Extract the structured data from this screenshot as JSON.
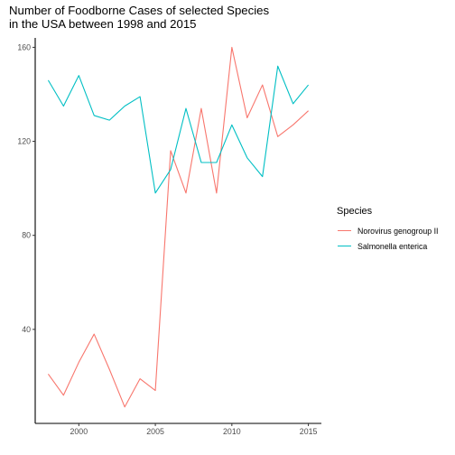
{
  "chart_data": {
    "type": "line",
    "title_lines": [
      "Number of Foodborne Cases of selected Species",
      "in the USA between 1998 and 2015"
    ],
    "xlabel": "",
    "ylabel": "",
    "x": [
      1998,
      1999,
      2000,
      2001,
      2002,
      2003,
      2004,
      2005,
      2006,
      2007,
      2008,
      2009,
      2010,
      2011,
      2012,
      2013,
      2014,
      2015
    ],
    "xlim": [
      1997.15,
      2015.85
    ],
    "ylim": [
      0,
      164
    ],
    "x_ticks": [
      2000,
      2005,
      2010,
      2015
    ],
    "y_ticks": [
      40,
      80,
      120,
      160
    ],
    "x_tick_labels": [
      "2000",
      "2005",
      "2010",
      "2015"
    ],
    "y_tick_labels": [
      "40",
      "80",
      "120",
      "160"
    ],
    "grid": false,
    "legend_position": "right",
    "legend_title": "Species",
    "series": [
      {
        "name": "Norovirus genogroup II",
        "color": "#F8766D",
        "values": [
          21,
          12,
          26,
          38,
          23,
          7,
          19,
          14,
          116,
          98,
          134,
          98,
          160,
          130,
          144,
          122,
          127,
          133
        ]
      },
      {
        "name": "Salmonella enterica",
        "color": "#00BFC4",
        "values": [
          146,
          135,
          148,
          131,
          129,
          135,
          139,
          98,
          108,
          134,
          111,
          111,
          127,
          113,
          105,
          152,
          136,
          144
        ]
      }
    ]
  }
}
